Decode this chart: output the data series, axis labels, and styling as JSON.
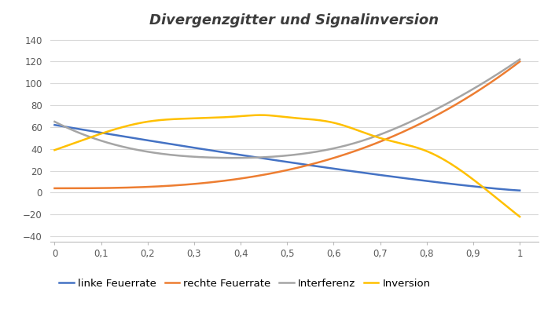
{
  "title": "Divergenzgitter und Signalinversion",
  "title_fontsize": 13,
  "x_ticks": [
    0,
    0.1,
    0.2,
    0.3,
    0.4,
    0.5,
    0.6,
    0.7,
    0.8,
    0.9,
    1.0
  ],
  "x_tick_labels": [
    "0",
    "0,1",
    "0,2",
    "0,3",
    "0,4",
    "0,5",
    "0,6",
    "0,7",
    "0,8",
    "0,9",
    "1"
  ],
  "ylim": [
    -45,
    148
  ],
  "yticks": [
    -40,
    -20,
    0,
    20,
    40,
    60,
    80,
    100,
    120,
    140
  ],
  "xlim": [
    -0.01,
    1.04
  ],
  "linke_color": "#4472C4",
  "rechte_color": "#ED7D31",
  "interferenz_color": "#A5A5A5",
  "inversion_color": "#FFC000",
  "linewidth": 1.8,
  "legend_fontsize": 9.5,
  "bg_color": "#FFFFFF",
  "grid_color": "#D9D9D9",
  "grid_linewidth": 0.8
}
